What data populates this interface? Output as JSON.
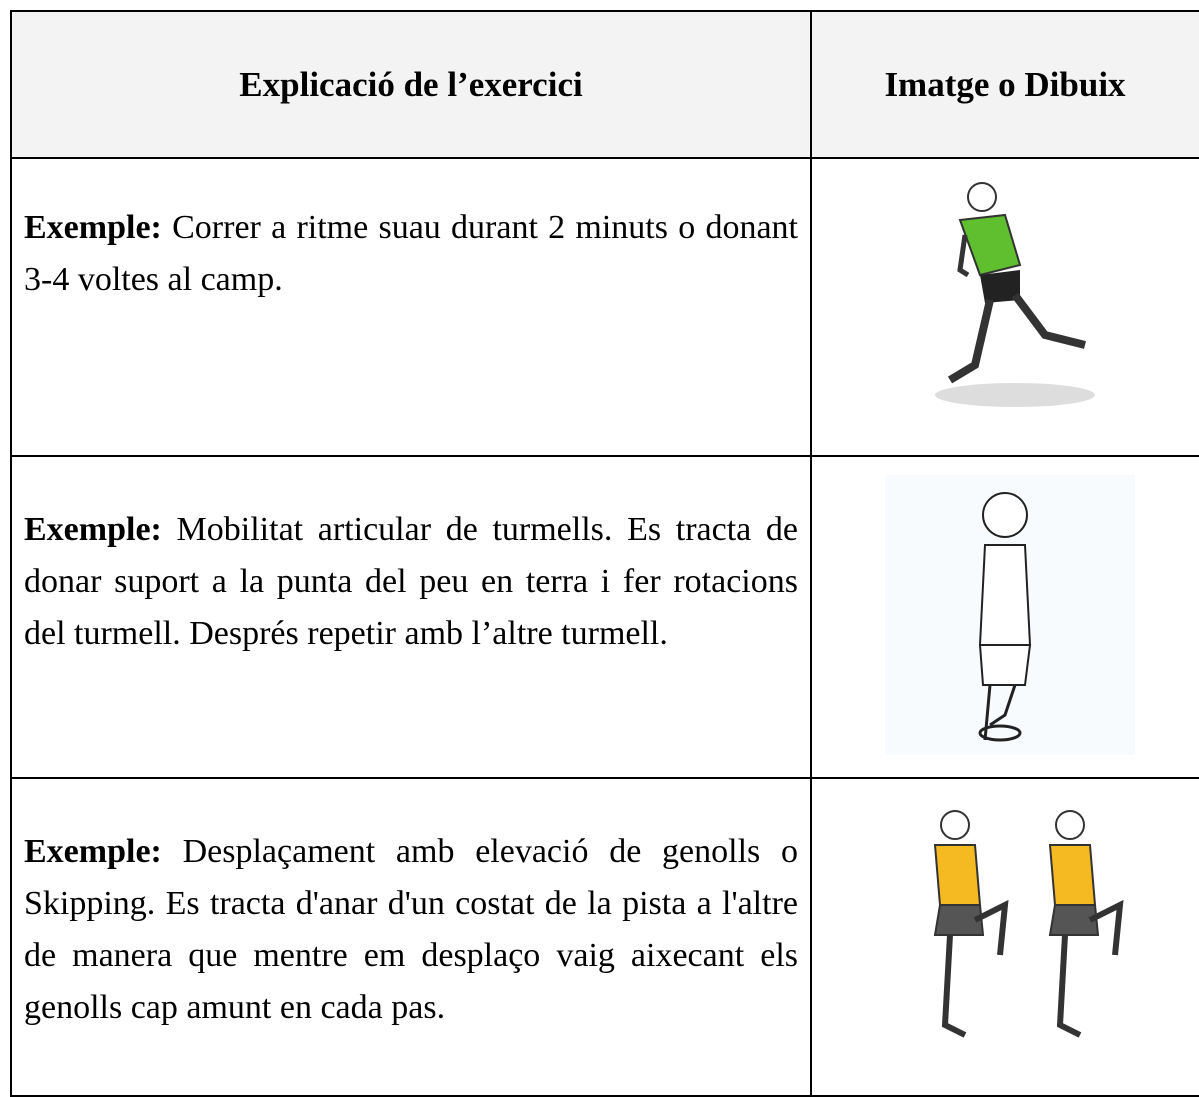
{
  "header": {
    "columns": [
      "Explicació de l’exercici",
      "Imatge o Dibuix"
    ]
  },
  "table": {
    "rows": [
      {
        "label": "Exemple:",
        "text": "Correr a ritme suau durant 2 minuts o donant 3-4 voltes al camp."
      },
      {
        "label": "Exemple:",
        "text": "Mobilitat articular de turmells. Es tracta de donar suport a la punta del peu en terra i fer rotacions del turmell. Després repetir amb l’altre turmell."
      },
      {
        "label": "Exemple:",
        "text": "Desplaçament amb elevació de genolls o Skipping. Es tracta d'anar d'un costat de la pista a l'altre de manera que mentre em desplaço vaig aixecant els genolls cap amunt en cada pas."
      }
    ]
  }
}
